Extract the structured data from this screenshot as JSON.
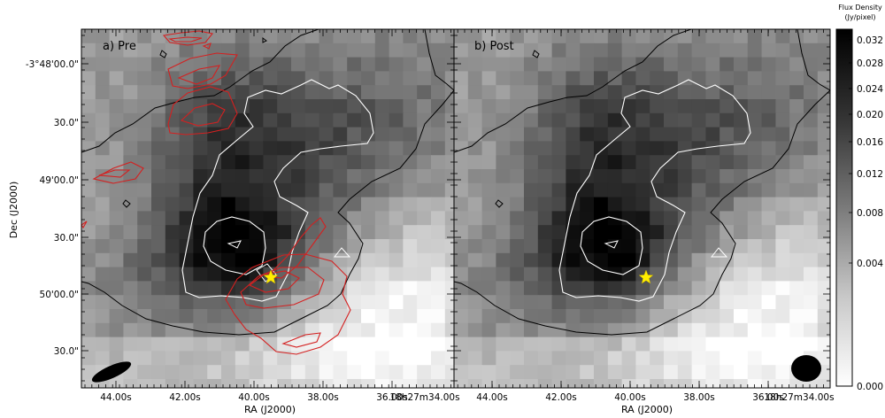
{
  "figure": {
    "panels": [
      {
        "id": "pre",
        "label": "a) Pre",
        "show_red_contours": true
      },
      {
        "id": "post",
        "label": "b) Post",
        "show_red_contours": false
      }
    ],
    "x_axis": {
      "title": "RA (J2000)",
      "ticks": [
        "44.00s",
        "42.00s",
        "40.00s",
        "38.00s",
        "36.00s",
        "18h27m34.00s"
      ]
    },
    "y_axis": {
      "title": "Dec (J2000)",
      "ticks": [
        "-3°48'00.0\"",
        "30.0\"",
        "49'00.0\"",
        "30.0\"",
        "50'00.0\"",
        "30.0\""
      ]
    },
    "colorbar": {
      "title_line1": "Flux Density",
      "title_line2": "(Jy/pixel)",
      "ticks": [
        "0.032",
        "0.028",
        "0.024",
        "0.020",
        "0.016",
        "0.012",
        "0.008",
        "0.004",
        "0.000"
      ],
      "max": 0.032,
      "min": 0.0
    },
    "colors": {
      "red_contour": "#d42020",
      "black_contour": "#000000",
      "white_contour": "#ffffff",
      "star": "#ffee00"
    }
  }
}
